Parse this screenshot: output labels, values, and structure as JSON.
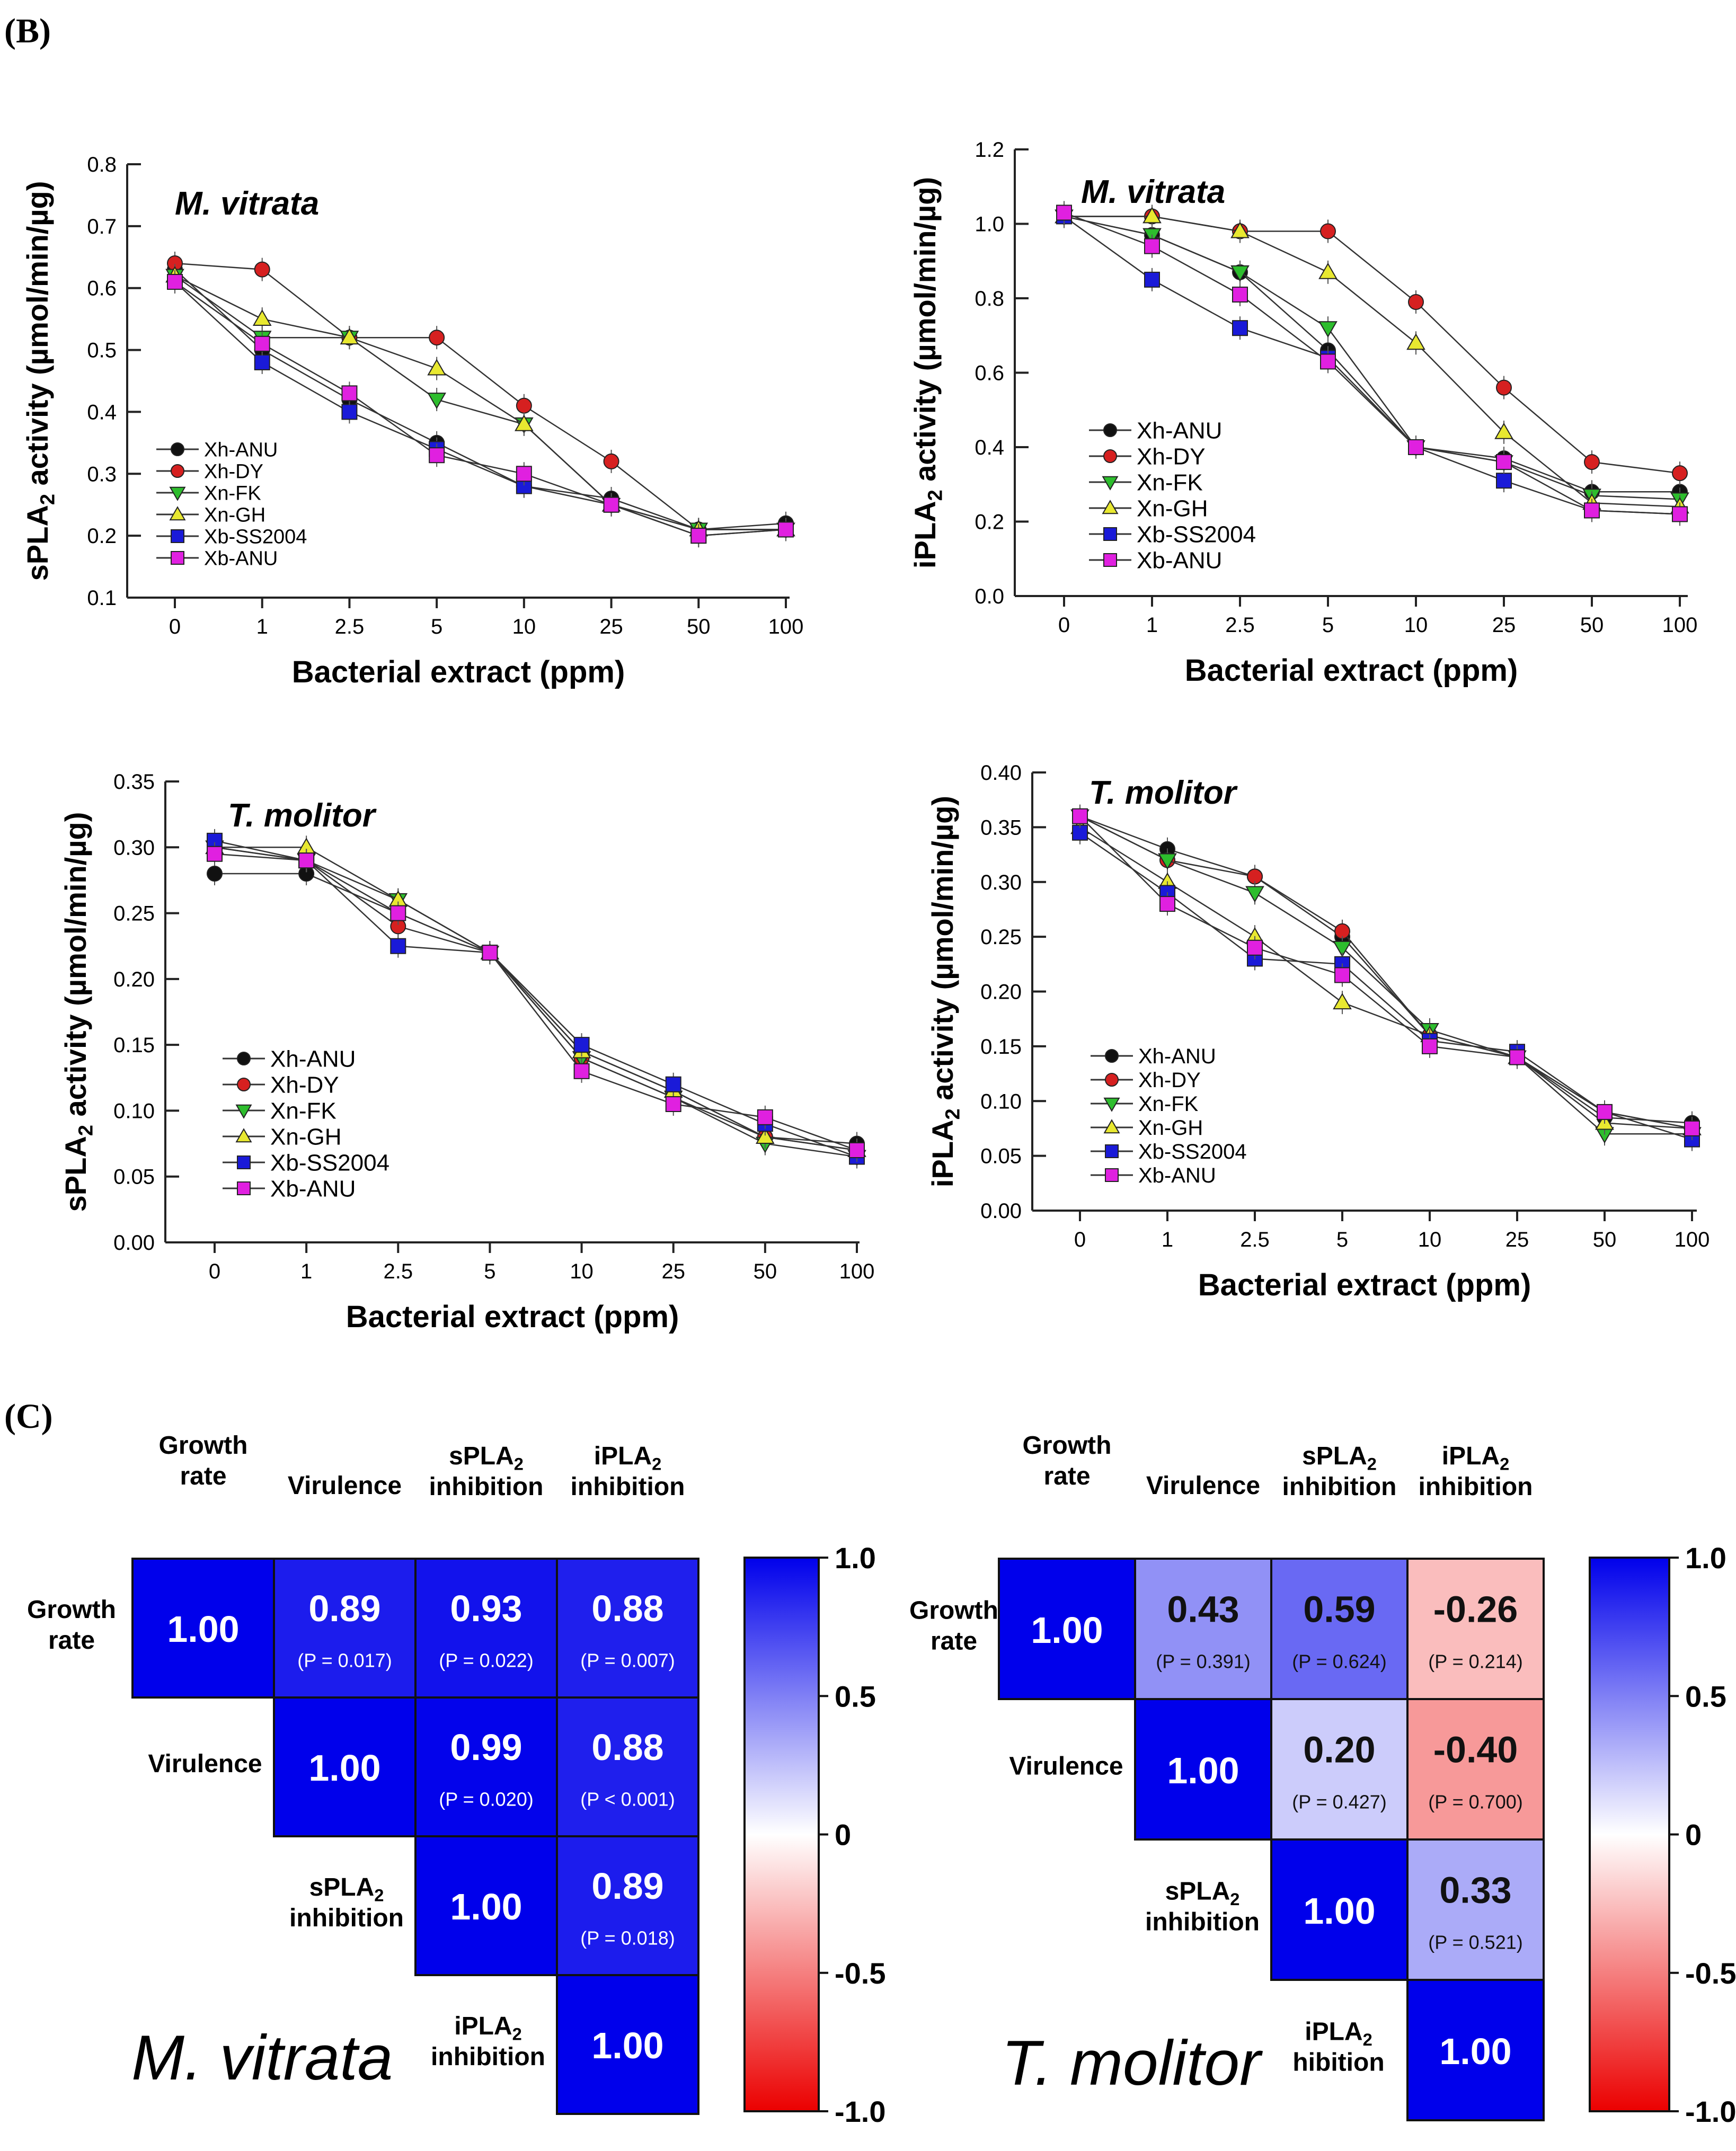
{
  "panels": {
    "b_label": "(B)",
    "c_label": "(C)"
  },
  "legend_order": [
    "Xh-ANU",
    "Xh-DY",
    "Xn-FK",
    "Xn-GH",
    "Xb-SS2004",
    "Xb-ANU"
  ],
  "series_styles": [
    {
      "name": "Xh-ANU",
      "color": "#111111",
      "marker": "circle"
    },
    {
      "name": "Xh-DY",
      "color": "#d62020",
      "marker": "circle"
    },
    {
      "name": "Xn-FK",
      "color": "#2dbd2d",
      "marker": "triangle-down"
    },
    {
      "name": "Xn-GH",
      "color": "#e8e830",
      "marker": "triangle-up"
    },
    {
      "name": "Xb-SS2004",
      "color": "#1a1ad8",
      "marker": "square"
    },
    {
      "name": "Xb-ANU",
      "color": "#e020e0",
      "marker": "square"
    }
  ],
  "chart_data": [
    {
      "type": "line",
      "id": "mv-spla2",
      "species": "M. vitrata",
      "ylabel": "sPLA2 activity (µmol/min/µg)",
      "xlabel": "Bacterial extract (ppm)",
      "categories": [
        "0",
        "1",
        "2.5",
        "5",
        "10",
        "25",
        "50",
        "100"
      ],
      "ylim": [
        0.1,
        0.8
      ],
      "yticks": [
        "0.1",
        "0.2",
        "0.3",
        "0.4",
        "0.5",
        "0.6",
        "0.7",
        "0.8"
      ],
      "series": [
        {
          "name": "Xh-ANU",
          "values": [
            0.63,
            0.5,
            0.42,
            0.35,
            0.28,
            0.26,
            0.21,
            0.22
          ]
        },
        {
          "name": "Xh-DY",
          "values": [
            0.64,
            0.63,
            0.52,
            0.52,
            0.41,
            0.32,
            0.21,
            0.21
          ]
        },
        {
          "name": "Xn-FK",
          "values": [
            0.62,
            0.52,
            0.52,
            0.42,
            0.38,
            0.25,
            0.21,
            0.21
          ]
        },
        {
          "name": "Xn-GH",
          "values": [
            0.62,
            0.55,
            0.52,
            0.47,
            0.38,
            0.25,
            0.21,
            0.21
          ]
        },
        {
          "name": "Xb-SS2004",
          "values": [
            0.61,
            0.48,
            0.4,
            0.34,
            0.28,
            0.25,
            0.2,
            0.21
          ]
        },
        {
          "name": "Xb-ANU",
          "values": [
            0.61,
            0.51,
            0.43,
            0.33,
            0.3,
            0.25,
            0.2,
            0.21
          ]
        }
      ]
    },
    {
      "type": "line",
      "id": "mv-ipla2",
      "species": "M. vitrata",
      "ylabel": "iPLA2 activity (µmol/min/µg)",
      "xlabel": "Bacterial extract (ppm)",
      "categories": [
        "0",
        "1",
        "2.5",
        "5",
        "10",
        "25",
        "50",
        "100"
      ],
      "ylim": [
        0.0,
        1.2
      ],
      "yticks": [
        "0.0",
        "0.2",
        "0.4",
        "0.6",
        "0.8",
        "1.0",
        "1.2"
      ],
      "series": [
        {
          "name": "Xh-ANU",
          "values": [
            1.02,
            0.97,
            0.87,
            0.66,
            0.4,
            0.37,
            0.28,
            0.28
          ]
        },
        {
          "name": "Xh-DY",
          "values": [
            1.02,
            1.02,
            0.98,
            0.98,
            0.79,
            0.56,
            0.36,
            0.33
          ]
        },
        {
          "name": "Xn-FK",
          "values": [
            1.02,
            0.97,
            0.87,
            0.72,
            0.4,
            0.36,
            0.27,
            0.26
          ]
        },
        {
          "name": "Xn-GH",
          "values": [
            1.02,
            1.02,
            0.98,
            0.87,
            0.68,
            0.44,
            0.25,
            0.24
          ]
        },
        {
          "name": "Xb-SS2004",
          "values": [
            1.02,
            0.85,
            0.72,
            0.64,
            0.4,
            0.31,
            0.23,
            0.22
          ]
        },
        {
          "name": "Xb-ANU",
          "values": [
            1.03,
            0.94,
            0.81,
            0.63,
            0.4,
            0.36,
            0.23,
            0.22
          ]
        }
      ]
    },
    {
      "type": "line",
      "id": "tm-spla2",
      "species": "T. molitor",
      "ylabel": "sPLA2 activity (µmol/min/µg)",
      "xlabel": "Bacterial extract (ppm)",
      "categories": [
        "0",
        "1",
        "2.5",
        "5",
        "10",
        "25",
        "50",
        "100"
      ],
      "ylim": [
        0.0,
        0.35
      ],
      "yticks": [
        "0.00",
        "0.05",
        "0.10",
        "0.15",
        "0.20",
        "0.25",
        "0.30",
        "0.35"
      ],
      "series": [
        {
          "name": "Xh-ANU",
          "values": [
            0.28,
            0.28,
            0.25,
            0.22,
            0.145,
            0.115,
            0.08,
            0.075
          ]
        },
        {
          "name": "Xh-DY",
          "values": [
            0.3,
            0.29,
            0.24,
            0.22,
            0.14,
            0.11,
            0.08,
            0.07
          ]
        },
        {
          "name": "Xn-FK",
          "values": [
            0.3,
            0.29,
            0.26,
            0.22,
            0.14,
            0.11,
            0.075,
            0.065
          ]
        },
        {
          "name": "Xn-GH",
          "values": [
            0.3,
            0.3,
            0.26,
            0.22,
            0.145,
            0.115,
            0.08,
            0.07
          ]
        },
        {
          "name": "Xb-SS2004",
          "values": [
            0.305,
            0.29,
            0.225,
            0.22,
            0.15,
            0.12,
            0.09,
            0.065
          ]
        },
        {
          "name": "Xb-ANU",
          "values": [
            0.295,
            0.29,
            0.25,
            0.22,
            0.13,
            0.105,
            0.095,
            0.07
          ]
        }
      ]
    },
    {
      "type": "line",
      "id": "tm-ipla2",
      "species": "T. molitor",
      "ylabel": "iPLA2 activity (µmol/min/µg)",
      "xlabel": "Bacterial extract (ppm)",
      "categories": [
        "0",
        "1",
        "2.5",
        "5",
        "10",
        "25",
        "50",
        "100"
      ],
      "ylim": [
        0.0,
        0.4
      ],
      "yticks": [
        "0.00",
        "0.05",
        "0.10",
        "0.15",
        "0.20",
        "0.25",
        "0.30",
        "0.35",
        "0.40"
      ],
      "series": [
        {
          "name": "Xh-ANU",
          "values": [
            0.36,
            0.33,
            0.305,
            0.25,
            0.16,
            0.14,
            0.085,
            0.08
          ]
        },
        {
          "name": "Xh-DY",
          "values": [
            0.36,
            0.32,
            0.305,
            0.255,
            0.16,
            0.14,
            0.09,
            0.075
          ]
        },
        {
          "name": "Xn-FK",
          "values": [
            0.36,
            0.32,
            0.29,
            0.24,
            0.165,
            0.14,
            0.07,
            0.07
          ]
        },
        {
          "name": "Xn-GH",
          "values": [
            0.35,
            0.3,
            0.25,
            0.19,
            0.16,
            0.14,
            0.08,
            0.075
          ]
        },
        {
          "name": "Xb-SS2004",
          "values": [
            0.345,
            0.29,
            0.23,
            0.225,
            0.155,
            0.145,
            0.09,
            0.065
          ]
        },
        {
          "name": "Xb-ANU",
          "values": [
            0.36,
            0.28,
            0.24,
            0.215,
            0.15,
            0.14,
            0.09,
            0.075
          ]
        }
      ]
    },
    {
      "type": "heatmap",
      "id": "mv-corr",
      "species": "M. vitrata",
      "col_labels": [
        [
          "Growth",
          "rate"
        ],
        [
          "Virulence"
        ],
        [
          "sPLA2",
          "inhibition"
        ],
        [
          "iPLA2",
          "inhibition"
        ]
      ],
      "row_labels": [
        [
          "Growth",
          "rate"
        ],
        [
          "Virulence"
        ],
        [
          "sPLA2",
          "inhibition"
        ],
        [
          "iPLA2",
          "inhibition"
        ]
      ],
      "cells": [
        [
          {
            "v": 1.0,
            "t": "1.00"
          },
          {
            "v": 0.89,
            "t": "0.89",
            "p": "(P = 0.017)"
          },
          {
            "v": 0.93,
            "t": "0.93",
            "p": "(P = 0.022)"
          },
          {
            "v": 0.88,
            "t": "0.88",
            "p": "(P = 0.007)"
          }
        ],
        [
          null,
          {
            "v": 1.0,
            "t": "1.00"
          },
          {
            "v": 0.99,
            "t": "0.99",
            "p": "(P = 0.020)"
          },
          {
            "v": 0.88,
            "t": "0.88",
            "p": "(P < 0.001)"
          }
        ],
        [
          null,
          null,
          {
            "v": 1.0,
            "t": "1.00"
          },
          {
            "v": 0.89,
            "t": "0.89",
            "p": "(P = 0.018)"
          }
        ],
        [
          null,
          null,
          null,
          {
            "v": 1.0,
            "t": "1.00"
          }
        ]
      ],
      "colorbar": {
        "ticks": [
          "1.0",
          "0.5",
          "0",
          "-0.5",
          "-1.0"
        ],
        "range": [
          -1.0,
          1.0
        ]
      }
    },
    {
      "type": "heatmap",
      "id": "tm-corr",
      "species": "T. molitor",
      "col_labels": [
        [
          "Growth",
          "rate"
        ],
        [
          "Virulence"
        ],
        [
          "sPLA2",
          "inhibition"
        ],
        [
          "iPLA2",
          "inhibition"
        ]
      ],
      "row_labels": [
        [
          "Growth",
          "rate"
        ],
        [
          "Virulence"
        ],
        [
          "sPLA2",
          "inhibition"
        ],
        [
          "iPLA2",
          "hibition"
        ]
      ],
      "cells": [
        [
          {
            "v": 1.0,
            "t": "1.00"
          },
          {
            "v": 0.43,
            "t": "0.43",
            "p": "(P = 0.391)"
          },
          {
            "v": 0.59,
            "t": "0.59",
            "p": "(P = 0.624)"
          },
          {
            "v": -0.26,
            "t": "-0.26",
            "p": "(P = 0.214)"
          }
        ],
        [
          null,
          {
            "v": 1.0,
            "t": "1.00"
          },
          {
            "v": 0.2,
            "t": "0.20",
            "p": "(P = 0.427)"
          },
          {
            "v": -0.4,
            "t": "-0.40",
            "p": "(P = 0.700)"
          }
        ],
        [
          null,
          null,
          {
            "v": 1.0,
            "t": "1.00"
          },
          {
            "v": 0.33,
            "t": "0.33",
            "p": "(P = 0.521)"
          }
        ],
        [
          null,
          null,
          null,
          {
            "v": 1.0,
            "t": "1.00"
          }
        ]
      ],
      "colorbar": {
        "ticks": [
          "1.0",
          "0.5",
          "0",
          "-0.5",
          "-1.0"
        ],
        "range": [
          -1.0,
          1.0
        ]
      }
    }
  ]
}
